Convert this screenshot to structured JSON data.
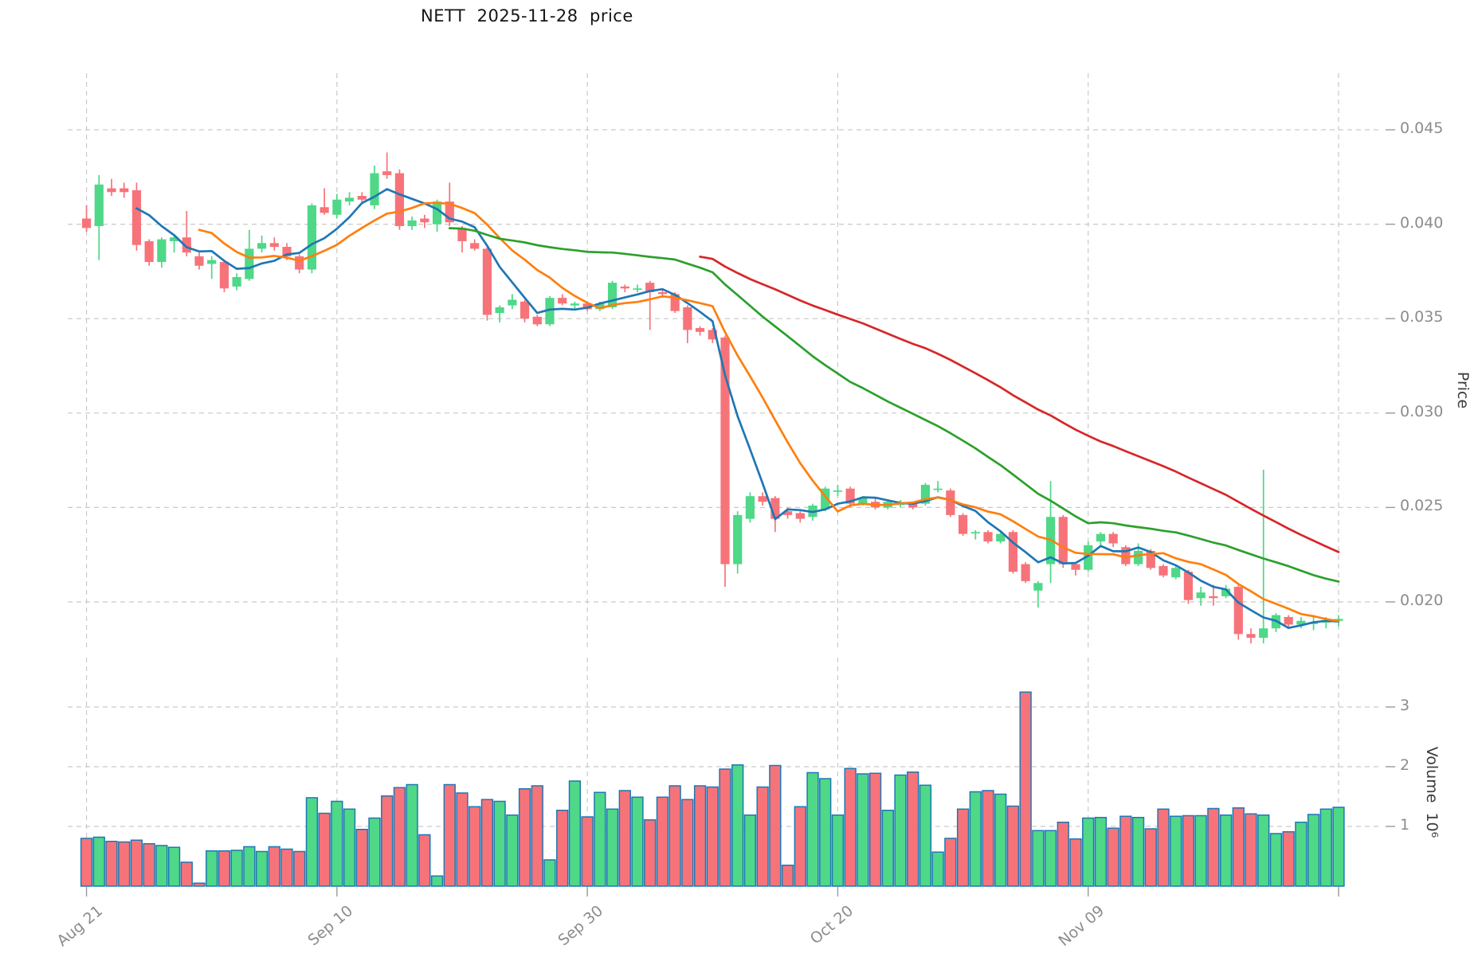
{
  "chart_data": {
    "type": "candlestick",
    "title": "NETT  2025-11-28  price",
    "price_axis": {
      "side": "right",
      "label": "Price",
      "ticks": [
        0.045,
        0.04,
        0.035,
        0.03,
        0.025,
        0.02
      ],
      "tick_labels": [
        "0.045",
        "0.040",
        "0.035",
        "0.030",
        "0.025",
        "0.020"
      ],
      "range": [
        0.0174,
        0.0465
      ]
    },
    "volume_axis": {
      "side": "right",
      "label": "Volume  10⁶",
      "ticks": [
        3,
        2,
        1
      ],
      "tick_labels": [
        "3",
        "2",
        "1"
      ],
      "unit": 1000000,
      "range": [
        0,
        3.83
      ]
    },
    "x_axis": {
      "tick_indices": [
        0,
        20,
        40,
        60,
        80
      ],
      "tick_labels": [
        "Aug 21",
        "Sep 10",
        "Sep 30",
        "Oct 20",
        "Nov 09"
      ],
      "gridline_indices": [
        0,
        20,
        40,
        60,
        80,
        100
      ],
      "grid": true
    },
    "legend_position": "none",
    "moving_averages": [
      {
        "name": "MA5",
        "window": 5,
        "color": "#1f77b4"
      },
      {
        "name": "MA10",
        "window": 10,
        "color": "#ff7f0e"
      },
      {
        "name": "MA30",
        "window": 30,
        "color": "#2ca02c"
      },
      {
        "name": "MA50",
        "window": 50,
        "color": "#d62728"
      }
    ],
    "colors": {
      "up": "#4ed887",
      "down": "#f7737a",
      "volume_edge": "#1f77b4",
      "grid": "#c9c9c9",
      "tick_text": "#8c8c8c",
      "title_text": "#151515"
    },
    "price_unit": 0.0001,
    "candles_format": [
      "open",
      "high",
      "low",
      "close",
      "volume_millions"
    ],
    "candles": [
      [
        403,
        410,
        396,
        398,
        0.8
      ],
      [
        399,
        426,
        381,
        421,
        0.82
      ],
      [
        419,
        424,
        415,
        417,
        0.75
      ],
      [
        419,
        422,
        414,
        417,
        0.74
      ],
      [
        418,
        422,
        386,
        389,
        0.77
      ],
      [
        391,
        392,
        378,
        380,
        0.71
      ],
      [
        380,
        393,
        377,
        392,
        0.68
      ],
      [
        391,
        394,
        385,
        393,
        0.65
      ],
      [
        393,
        407,
        383,
        385,
        0.4
      ],
      [
        383,
        385,
        376,
        378,
        0.05
      ],
      [
        379,
        383,
        371,
        381,
        0.59
      ],
      [
        380,
        381,
        364,
        366,
        0.59
      ],
      [
        367,
        374,
        365,
        372,
        0.6
      ],
      [
        371,
        397,
        370,
        387,
        0.66
      ],
      [
        387,
        394,
        385,
        390,
        0.58
      ],
      [
        390,
        393,
        386,
        388,
        0.66
      ],
      [
        388,
        390,
        381,
        383,
        0.62
      ],
      [
        383,
        384,
        374,
        376,
        0.58
      ],
      [
        376,
        411,
        374,
        410,
        1.48
      ],
      [
        409,
        419,
        405,
        406,
        1.22
      ],
      [
        405,
        416,
        403,
        413,
        1.42
      ],
      [
        412,
        417,
        410,
        414,
        1.29
      ],
      [
        415,
        417,
        411,
        413,
        0.95
      ],
      [
        410,
        431,
        408,
        427,
        1.14
      ],
      [
        428,
        438,
        424,
        426,
        1.51
      ],
      [
        427,
        429,
        397,
        399,
        1.65
      ],
      [
        399,
        404,
        397,
        402,
        1.7
      ],
      [
        403,
        405,
        398,
        401,
        0.86
      ],
      [
        400,
        413,
        396,
        412,
        0.17
      ],
      [
        412,
        422,
        399,
        401,
        1.7
      ],
      [
        398,
        399,
        385,
        391,
        1.56
      ],
      [
        390,
        392,
        386,
        387,
        1.33
      ],
      [
        387,
        388,
        349,
        352,
        1.45
      ],
      [
        353,
        357,
        348,
        356,
        1.42
      ],
      [
        357,
        363,
        355,
        360,
        1.19
      ],
      [
        359,
        360,
        348,
        350,
        1.63
      ],
      [
        351,
        352,
        346,
        347,
        1.68
      ],
      [
        347,
        362,
        346,
        361,
        0.44
      ],
      [
        361,
        363,
        357,
        358,
        1.27
      ],
      [
        357,
        359,
        355,
        358,
        1.76
      ],
      [
        358,
        359,
        354,
        355,
        1.16
      ],
      [
        355,
        359,
        354,
        358,
        1.57
      ],
      [
        356,
        370,
        355,
        369,
        1.29
      ],
      [
        367,
        368,
        364,
        366,
        1.6
      ],
      [
        366,
        368,
        364,
        366,
        1.49
      ],
      [
        369,
        370,
        344,
        364,
        1.11
      ],
      [
        364,
        366,
        361,
        363,
        1.49
      ],
      [
        363,
        364,
        353,
        354,
        1.68
      ],
      [
        356,
        357,
        337,
        344,
        1.45
      ],
      [
        345,
        346,
        341,
        343,
        1.68
      ],
      [
        344,
        345,
        337,
        339,
        1.66
      ],
      [
        340,
        341,
        208,
        220,
        1.96
      ],
      [
        220,
        248,
        215,
        246,
        2.03
      ],
      [
        244,
        258,
        242,
        256,
        1.19
      ],
      [
        256,
        258,
        251,
        253,
        1.66
      ],
      [
        255,
        256,
        237,
        244,
        2.02
      ],
      [
        248,
        250,
        244,
        246,
        0.35
      ],
      [
        247,
        248,
        242,
        244,
        1.33
      ],
      [
        245,
        252,
        243,
        251,
        1.9
      ],
      [
        249,
        261,
        248,
        260,
        1.8
      ],
      [
        259,
        262,
        256,
        259,
        1.19
      ],
      [
        260,
        261,
        250,
        252,
        1.97
      ],
      [
        252,
        256,
        251,
        255,
        1.88
      ],
      [
        253,
        255,
        249,
        250,
        1.89
      ],
      [
        250,
        254,
        249,
        253,
        1.27
      ],
      [
        252,
        254,
        250,
        252,
        1.86
      ],
      [
        252,
        253,
        249,
        250,
        1.91
      ],
      [
        252,
        263,
        251,
        262,
        1.69
      ],
      [
        260,
        264,
        258,
        260,
        0.57
      ],
      [
        259,
        260,
        245,
        246,
        0.8
      ],
      [
        246,
        247,
        235,
        236,
        1.29
      ],
      [
        237,
        238,
        233,
        237,
        1.58
      ],
      [
        237,
        238,
        231,
        232,
        1.6
      ],
      [
        232,
        237,
        231,
        236,
        1.54
      ],
      [
        237,
        238,
        215,
        216,
        1.34
      ],
      [
        220,
        221,
        210,
        211,
        3.25
      ],
      [
        206,
        211,
        197,
        210,
        0.93
      ],
      [
        220,
        264,
        210,
        245,
        0.93
      ],
      [
        245,
        246,
        218,
        220,
        1.07
      ],
      [
        220,
        221,
        214,
        217,
        0.79
      ],
      [
        217,
        232,
        216,
        230,
        1.14
      ],
      [
        232,
        237,
        230,
        236,
        1.15
      ],
      [
        236,
        237,
        229,
        231,
        0.97
      ],
      [
        229,
        230,
        219,
        220,
        1.17
      ],
      [
        220,
        231,
        219,
        227,
        1.15
      ],
      [
        227,
        228,
        217,
        218,
        0.96
      ],
      [
        219,
        220,
        213,
        214,
        1.29
      ],
      [
        213,
        219,
        212,
        218,
        1.17
      ],
      [
        216,
        217,
        199,
        201,
        1.18
      ],
      [
        202,
        208,
        198,
        205,
        1.18
      ],
      [
        203,
        209,
        198,
        202,
        1.3
      ],
      [
        203,
        209,
        202,
        207,
        1.19
      ],
      [
        208,
        209,
        180,
        183,
        1.31
      ],
      [
        183,
        186,
        178,
        181,
        1.21
      ],
      [
        181,
        270,
        178,
        186,
        1.19
      ],
      [
        186,
        194,
        184,
        193,
        0.88
      ],
      [
        192,
        193,
        186,
        188,
        0.91
      ],
      [
        188,
        192,
        186,
        190,
        1.07
      ],
      [
        189,
        193,
        185,
        189,
        1.2
      ],
      [
        189,
        192,
        186,
        190,
        1.29
      ],
      [
        190,
        193,
        187,
        191,
        1.32
      ]
    ]
  }
}
